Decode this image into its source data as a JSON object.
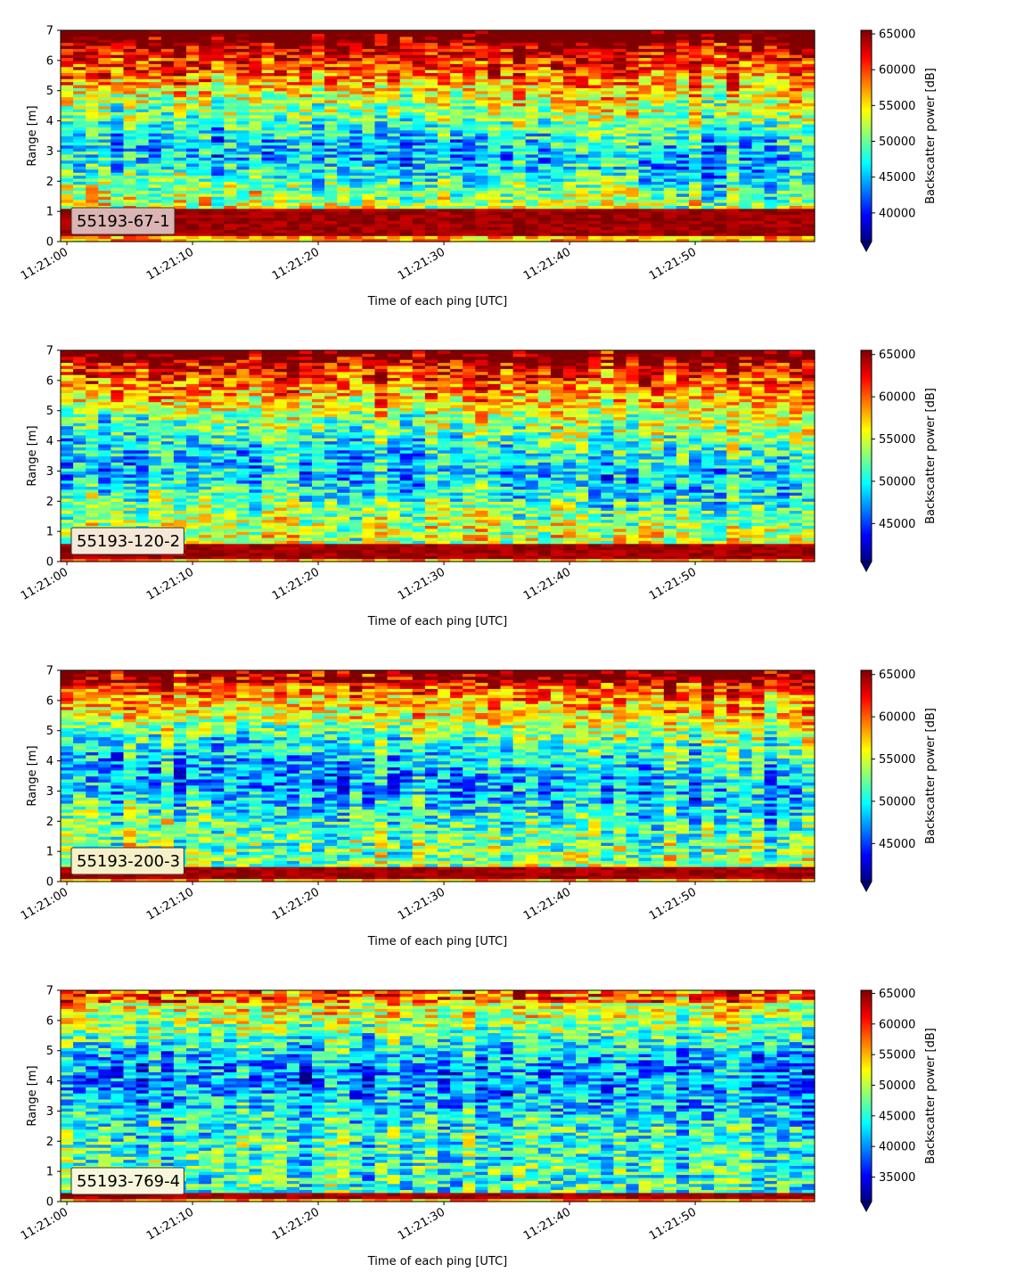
{
  "chart_data": [
    {
      "type": "heatmap",
      "label_box": "55193-67-1",
      "xlabel": "Time of each ping [UTC]",
      "ylabel": "Range [m]",
      "x_ticks": [
        "11:21:00",
        "11:21:10",
        "11:21:20",
        "11:21:30",
        "11:21:40",
        "11:21:50"
      ],
      "y_ticks": [
        0,
        1,
        2,
        3,
        4,
        5,
        6,
        7
      ],
      "ylim": [
        0,
        7
      ],
      "xlim_seconds": [
        -0.5,
        59.5
      ],
      "colorbar": {
        "label": "Backscatter power [dB]",
        "min": 36000,
        "max": 65500,
        "ticks": [
          40000,
          45000,
          50000,
          55000,
          60000,
          65000
        ],
        "extend": "min"
      },
      "profile": {
        "floor_top": 0.25,
        "floor_band": 1.1,
        "dip_center_start": 3.2,
        "dip_center_end": 2.6,
        "dip_depth": 0.55,
        "surface": 0.92,
        "bg": 0.5
      },
      "label_box_color": "#dbb4b4",
      "colormap": "jet"
    },
    {
      "type": "heatmap",
      "label_box": "55193-120-2",
      "xlabel": "Time of each ping [UTC]",
      "ylabel": "Range [m]",
      "x_ticks": [
        "11:21:00",
        "11:21:10",
        "11:21:20",
        "11:21:30",
        "11:21:40",
        "11:21:50"
      ],
      "y_ticks": [
        0,
        1,
        2,
        3,
        4,
        5,
        6,
        7
      ],
      "ylim": [
        0,
        7
      ],
      "xlim_seconds": [
        -0.5,
        59.5
      ],
      "colorbar": {
        "label": "Backscatter power [dB]",
        "min": 40500,
        "max": 65500,
        "ticks": [
          45000,
          50000,
          55000,
          60000,
          65000
        ],
        "extend": "min"
      },
      "profile": {
        "floor_top": 0.1,
        "floor_band": 0.6,
        "dip_center_start": 3.5,
        "dip_center_end": 2.6,
        "dip_depth": 0.45,
        "surface": 0.85,
        "bg": 0.45
      },
      "label_box_color": "#f5e8d8",
      "colormap": "jet"
    },
    {
      "type": "heatmap",
      "label_box": "55193-200-3",
      "xlabel": "Time of each ping [UTC]",
      "ylabel": "Range [m]",
      "x_ticks": [
        "11:21:00",
        "11:21:10",
        "11:21:20",
        "11:21:30",
        "11:21:40",
        "11:21:50"
      ],
      "y_ticks": [
        0,
        1,
        2,
        3,
        4,
        5,
        6,
        7
      ],
      "ylim": [
        0,
        7
      ],
      "xlim_seconds": [
        -0.5,
        59.5
      ],
      "colorbar": {
        "label": "Backscatter power [dB]",
        "min": 40500,
        "max": 65500,
        "ticks": [
          45000,
          50000,
          55000,
          60000,
          65000
        ],
        "extend": "min"
      },
      "profile": {
        "floor_top": 0.1,
        "floor_band": 0.45,
        "dip_center_start": 3.8,
        "dip_center_end": 2.8,
        "dip_depth": 0.4,
        "surface": 0.78,
        "bg": 0.4
      },
      "label_box_color": "#f5f0c8",
      "colormap": "jet"
    },
    {
      "type": "heatmap",
      "label_box": "55193-769-4",
      "xlabel": "Time of each ping [UTC]",
      "ylabel": "Range [m]",
      "x_ticks": [
        "11:21:00",
        "11:21:10",
        "11:21:20",
        "11:21:30",
        "11:21:40",
        "11:21:50"
      ],
      "y_ticks": [
        0,
        1,
        2,
        3,
        4,
        5,
        6,
        7
      ],
      "ylim": [
        0,
        7
      ],
      "xlim_seconds": [
        -0.5,
        59.5
      ],
      "colorbar": {
        "label": "Backscatter power [dB]",
        "min": 31000,
        "max": 65500,
        "ticks": [
          35000,
          40000,
          45000,
          50000,
          55000,
          60000,
          65000
        ],
        "extend": "min"
      },
      "profile": {
        "floor_top": 0.1,
        "floor_band": 0.35,
        "dip_center_start": 4.2,
        "dip_center_end": 4.0,
        "dip_depth": 0.3,
        "surface": 0.55,
        "bg": 0.3
      },
      "label_box_color": "#f8f6dc",
      "colormap": "jet"
    }
  ]
}
